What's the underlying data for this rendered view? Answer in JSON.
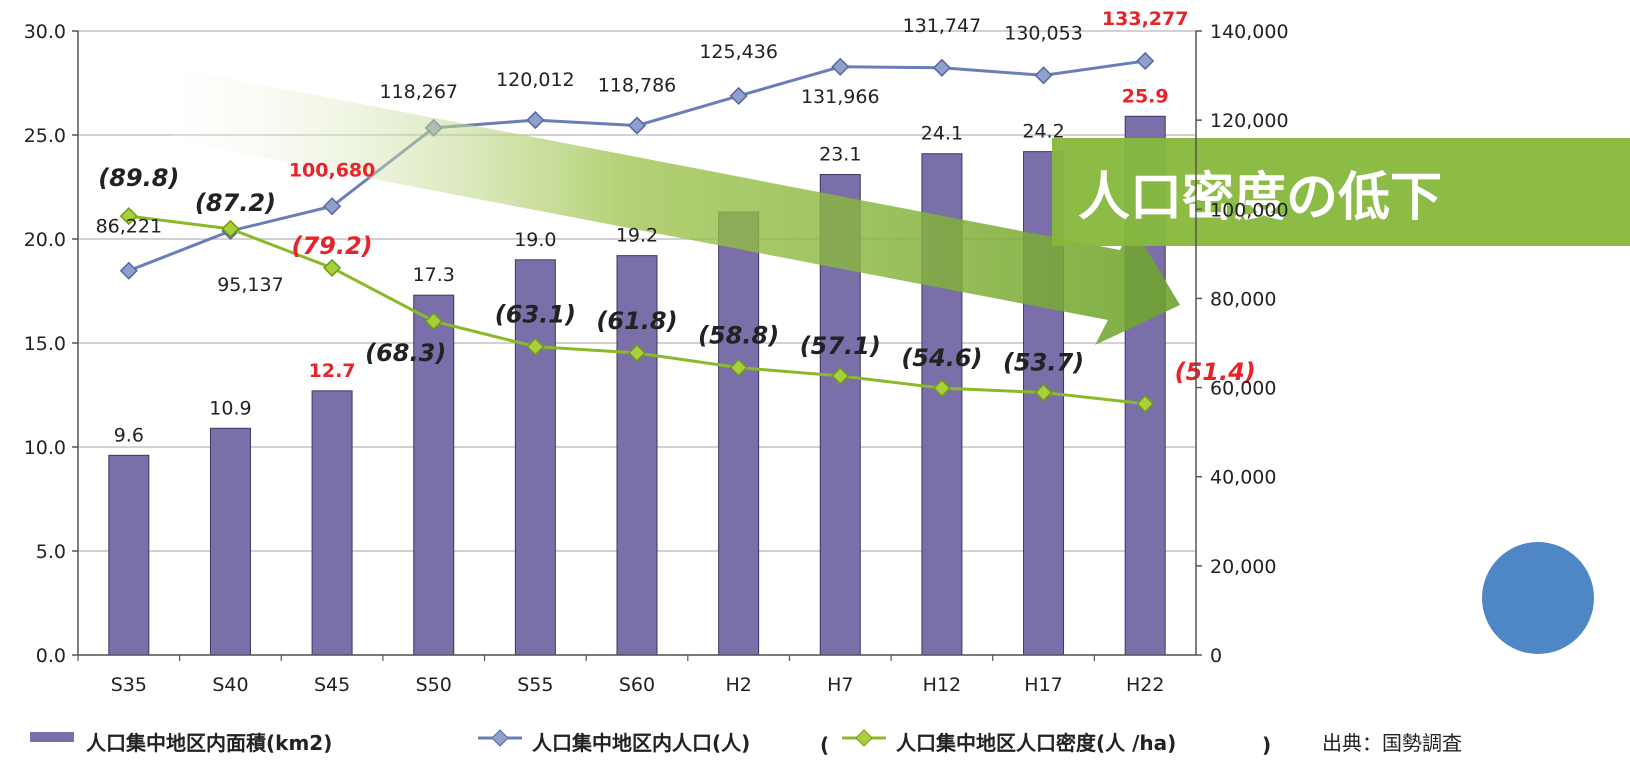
{
  "chart_data": {
    "type": "bar",
    "categories": [
      "S35",
      "S40",
      "S45",
      "S50",
      "S55",
      "S60",
      "H2",
      "H7",
      "H12",
      "H17",
      "H22"
    ],
    "series": [
      {
        "name": "人口集中地区内面積(km2)",
        "kind": "bar",
        "axis": "left",
        "color": "#7a6fa8",
        "values": [
          9.6,
          10.9,
          12.7,
          17.3,
          19.0,
          19.2,
          21.3,
          23.1,
          24.1,
          24.2,
          25.9
        ],
        "labels": [
          "9.6",
          "10.9",
          "12.7",
          "17.3",
          "19.0",
          "19.2",
          "",
          "23.1",
          "24.1",
          "24.2",
          "25.9"
        ],
        "highlight": [
          false,
          false,
          true,
          false,
          false,
          false,
          false,
          false,
          false,
          false,
          true
        ]
      },
      {
        "name": "人口集中地区内人口(人)",
        "kind": "line",
        "axis": "right",
        "color": "#6a7fb8",
        "values": [
          86221,
          95137,
          100680,
          118267,
          120012,
          118786,
          125436,
          131966,
          131747,
          130053,
          133277
        ],
        "labels": [
          "86,221",
          "95,137",
          "100,680",
          "118,267",
          "120,012",
          "118,786",
          "125,436",
          "131,966",
          "131,747",
          "130,053",
          "133,277"
        ],
        "highlight": [
          false,
          false,
          true,
          false,
          false,
          false,
          false,
          false,
          false,
          false,
          true
        ]
      },
      {
        "name": "人口集中地区人口密度(人 /ha)",
        "kind": "line",
        "axis": "right",
        "color": "#8db82a",
        "values": [
          89.8,
          87.2,
          79.2,
          68.3,
          63.1,
          61.8,
          58.8,
          57.1,
          54.6,
          53.7,
          51.4
        ],
        "labels": [
          "(89.8)",
          "(87.2)",
          "(79.2)",
          "(68.3)",
          "(63.1)",
          "(61.8)",
          "(58.8)",
          "(57.1)",
          "(54.6)",
          "(53.7)",
          "(51.4)"
        ],
        "highlight": [
          false,
          false,
          true,
          false,
          false,
          false,
          false,
          false,
          false,
          false,
          true
        ]
      }
    ],
    "left_axis": {
      "ylim": [
        0,
        30
      ],
      "ticks": [
        "0.0",
        "5.0",
        "10.0",
        "15.0",
        "20.0",
        "25.0",
        "30.0"
      ]
    },
    "right_axis": {
      "ylim": [
        0,
        140000
      ],
      "ticks": [
        "0",
        "20,000",
        "40,000",
        "60,000",
        "80,000",
        "100,000",
        "120,000",
        "140,000"
      ]
    },
    "grid": true,
    "legend_placement": "bottom",
    "annotation": "人口密度の低下",
    "source": "出典：国勢調査"
  },
  "colors": {
    "highlight": "#e8232a",
    "arrow": "#7fb13a",
    "circle": "#4f86c6"
  }
}
